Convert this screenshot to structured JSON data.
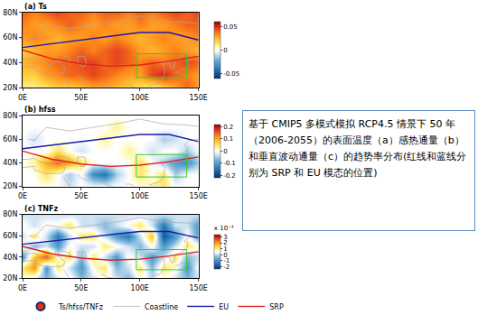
{
  "chart_data": [
    {
      "type": "heatmap",
      "title": "(a) Ts",
      "x": [
        0,
        10,
        20,
        30,
        40,
        50,
        60,
        70,
        80,
        90,
        100,
        110,
        120,
        130,
        140,
        150
      ],
      "y": [
        20,
        30,
        40,
        50,
        60,
        70,
        80
      ],
      "z": [
        [
          0.01,
          0.01,
          0.015,
          0.02,
          0.02,
          0.025,
          0.03,
          0.03,
          0.025,
          0.02,
          0.015,
          0.01,
          0.02,
          0.03,
          0.04,
          0.03
        ],
        [
          0.02,
          0.02,
          0.03,
          0.035,
          0.04,
          0.04,
          0.045,
          0.04,
          0.035,
          0.03,
          0.03,
          0.045,
          0.05,
          0.04,
          0.035,
          0.03
        ],
        [
          0.025,
          0.03,
          0.035,
          0.04,
          0.04,
          0.045,
          0.045,
          0.04,
          0.045,
          0.04,
          0.035,
          0.04,
          0.035,
          0.04,
          0.045,
          0.04
        ],
        [
          0.02,
          0.025,
          0.03,
          0.03,
          0.035,
          0.04,
          0.035,
          0.04,
          0.045,
          0.04,
          0.03,
          0.025,
          0.03,
          0.035,
          0.03,
          0.025
        ],
        [
          0.03,
          0.035,
          0.03,
          0.025,
          0.03,
          0.03,
          0.035,
          0.03,
          0.035,
          0.03,
          0.025,
          0.03,
          0.035,
          0.03,
          0.03,
          0.035
        ],
        [
          0.035,
          0.03,
          0.03,
          0.035,
          0.04,
          0.035,
          0.03,
          0.035,
          0.03,
          0.03,
          0.035,
          0.03,
          0.03,
          0.035,
          0.04,
          0.04
        ],
        [
          0.04,
          0.035,
          0.04,
          0.045,
          0.04,
          0.04,
          0.035,
          0.04,
          0.04,
          0.035,
          0.04,
          0.035,
          0.04,
          0.045,
          0.04,
          0.045
        ]
      ],
      "zlim": [
        -0.06,
        0.06
      ],
      "zticks": [
        0.05,
        0,
        -0.05
      ],
      "xlim": [
        0,
        150
      ],
      "xticks": [
        {
          "value": 0,
          "label": "0E"
        },
        {
          "value": 50,
          "label": "50E"
        },
        {
          "value": 100,
          "label": "100E"
        },
        {
          "value": 150,
          "label": "150E"
        }
      ],
      "ylim": [
        20,
        80
      ],
      "yticks": [
        {
          "value": 20,
          "label": "20N"
        },
        {
          "value": 40,
          "label": "40N"
        },
        {
          "value": 60,
          "label": "60N"
        },
        {
          "value": 80,
          "label": "80N"
        }
      ],
      "grid": false
    },
    {
      "type": "heatmap",
      "title": "(b) hfss",
      "x": [
        0,
        10,
        20,
        30,
        40,
        50,
        60,
        70,
        80,
        90,
        100,
        110,
        120,
        130,
        140,
        150
      ],
      "y": [
        20,
        30,
        40,
        50,
        60,
        70,
        80
      ],
      "z": [
        [
          0,
          0,
          0,
          0,
          -0.03,
          0,
          0,
          0,
          0,
          0,
          0,
          0.03,
          0.05,
          0,
          0,
          0
        ],
        [
          0,
          0,
          0.05,
          0,
          -0.05,
          0,
          -0.12,
          -0.15,
          -0.05,
          0,
          0.05,
          0,
          0.05,
          -0.05,
          0,
          0
        ],
        [
          0,
          0.03,
          0.1,
          0.15,
          0.1,
          0.05,
          0,
          0,
          0,
          0,
          0.05,
          0,
          -0.05,
          -0.1,
          -0.12,
          -0.05
        ],
        [
          0,
          0,
          0,
          0.05,
          0,
          -0.03,
          0,
          0,
          0,
          0.03,
          0,
          -0.03,
          0,
          0,
          -0.05,
          0
        ],
        [
          0,
          -0.03,
          0,
          0,
          0,
          0,
          0,
          0.03,
          0,
          0,
          0,
          0,
          -0.05,
          -0.03,
          0,
          0
        ],
        [
          0,
          0,
          0,
          0,
          0,
          0,
          0,
          0,
          0.03,
          0,
          0,
          0,
          0,
          0,
          0,
          0
        ],
        [
          0,
          0,
          0,
          0,
          0,
          0,
          0,
          0,
          0,
          0,
          0,
          0,
          0,
          0,
          0,
          0
        ]
      ],
      "zlim": [
        -0.22,
        0.22
      ],
      "zticks": [
        0.2,
        0.1,
        0,
        -0.1,
        -0.2
      ],
      "xlim": [
        0,
        150
      ],
      "xticks": [
        {
          "value": 0,
          "label": "0E"
        },
        {
          "value": 50,
          "label": "50E"
        },
        {
          "value": 100,
          "label": "100E"
        },
        {
          "value": 150,
          "label": "150E"
        }
      ],
      "ylim": [
        20,
        80
      ],
      "yticks": [
        {
          "value": 20,
          "label": "20N"
        },
        {
          "value": 40,
          "label": "40N"
        },
        {
          "value": 60,
          "label": "60N"
        },
        {
          "value": 80,
          "label": "80N"
        }
      ],
      "grid": false
    },
    {
      "type": "heatmap",
      "title": "(c) TNFz",
      "x": [
        0,
        10,
        20,
        30,
        40,
        50,
        60,
        70,
        80,
        90,
        100,
        110,
        120,
        130,
        140,
        150
      ],
      "y": [
        20,
        30,
        40,
        50,
        60,
        70,
        80
      ],
      "z": [
        [
          0.5,
          0,
          -0.5,
          0,
          0.5,
          -0.5,
          0,
          0.5,
          0,
          -0.5,
          0.5,
          0,
          0.5,
          0,
          -0.5,
          0
        ],
        [
          1,
          2,
          -1,
          1,
          0,
          -1,
          0.5,
          1,
          -0.5,
          0,
          1,
          -0.5,
          1,
          0.5,
          -1,
          0.5
        ],
        [
          -1,
          1.5,
          2.5,
          0.5,
          1,
          -0.5,
          1,
          0,
          -1,
          0.5,
          0,
          -1,
          0,
          1,
          -0.5,
          0
        ],
        [
          0.5,
          -0.5,
          0,
          -1,
          0.5,
          0,
          0,
          1,
          0.5,
          0,
          -0.5,
          0.5,
          -1,
          0,
          1,
          0.5
        ],
        [
          0,
          1,
          0,
          -1.5,
          0,
          1,
          1,
          0,
          -1,
          -1.5,
          0,
          1.5,
          -2,
          -1,
          0.5,
          -1
        ],
        [
          0.5,
          0,
          0.5,
          0.5,
          1,
          0,
          0,
          -0.5,
          0,
          0.5,
          1,
          0,
          -1.5,
          0,
          0,
          -1
        ],
        [
          0,
          0,
          0,
          0,
          0,
          0,
          0,
          0,
          0,
          0,
          0,
          0,
          0,
          0,
          0,
          0
        ]
      ],
      "zlim": [
        -2.5,
        3.3
      ],
      "zticks": [
        3,
        2,
        1,
        0,
        -1,
        -2
      ],
      "colorbar_title": "x 10⁻⁴",
      "xlim": [
        0,
        150
      ],
      "xticks": [
        {
          "value": 0,
          "label": "0E"
        },
        {
          "value": 50,
          "label": "50E"
        },
        {
          "value": 100,
          "label": "100E"
        },
        {
          "value": 150,
          "label": "150E"
        }
      ],
      "ylim": [
        20,
        80
      ],
      "yticks": [
        {
          "value": 20,
          "label": "20N"
        },
        {
          "value": 40,
          "label": "40N"
        },
        {
          "value": 60,
          "label": "60N"
        },
        {
          "value": 80,
          "label": "80N"
        }
      ],
      "grid": false
    }
  ],
  "legend_label": "Ts/hfss/TNFz",
  "map_series": [
    {
      "name": "Coastline",
      "color": "#aaaaaa",
      "line_style": "solid",
      "x": [
        0,
        5,
        10,
        15,
        18,
        23,
        27,
        30,
        36,
        35,
        32,
        20,
        10,
        10,
        0,
        null,
        28,
        33,
        40,
        41,
        30,
        28,
        28,
        null,
        47,
        53,
        54,
        53,
        50,
        47,
        47,
        null,
        35,
        40,
        null,
        48,
        50,
        57,
        null,
        67,
        72,
        78,
        null,
        88,
        92,
        95,
        null,
        108,
        117,
        121,
        121,
        118,
        122,
        125,
        127,
        129,
        130,
        135,
        140,
        141,
        138,
        142,
        150,
        null,
        130,
        135,
        140,
        142,
        141,
        145,
        null,
        5,
        10,
        20,
        40,
        60,
        80,
        100,
        120,
        140,
        150
      ],
      "y": [
        43,
        43,
        44,
        41,
        40,
        38,
        40,
        41,
        36,
        32,
        31,
        31,
        34,
        37,
        36,
        null,
        45,
        46,
        44,
        41,
        41,
        43,
        45,
        null,
        45,
        45,
        40,
        37,
        37,
        41,
        45,
        null,
        28,
        20,
        null,
        30,
        27,
        24,
        null,
        24,
        21,
        20,
        null,
        22,
        22,
        20,
        null,
        21,
        24,
        30,
        37,
        39,
        40,
        40,
        35,
        35,
        42,
        44,
        48,
        53,
        55,
        59,
        60,
        null,
        31,
        34,
        35,
        38,
        41,
        44,
        null,
        60,
        59,
        70,
        67,
        70,
        73,
        77,
        73,
        72,
        71
      ]
    },
    {
      "name": "EU",
      "color": "#1a1aa6",
      "line_style": "solid",
      "x": [
        0,
        25,
        50,
        75,
        100,
        125,
        150
      ],
      "y": [
        52,
        55,
        58,
        61,
        64,
        64,
        58
      ]
    },
    {
      "name": "SRP",
      "color": "#e0201b",
      "line_style": "solid",
      "x": [
        0,
        25,
        50,
        75,
        100,
        125,
        150
      ],
      "y": [
        50,
        43,
        39,
        37,
        38,
        41,
        45
      ]
    }
  ],
  "regions": [
    {
      "lon": [
        97,
        140
      ],
      "lat": [
        28,
        47
      ],
      "color": "#33cc33"
    }
  ],
  "caption": "基于 CMIP5 多模式模拟 RCP4.5 情景下 50 年（2006-2055）的表面温度（a）感热通量（b）和垂直波动通量（c）的趋势率分布(红线和蓝线分别为 SRP 和 EU 模态的位置)"
}
